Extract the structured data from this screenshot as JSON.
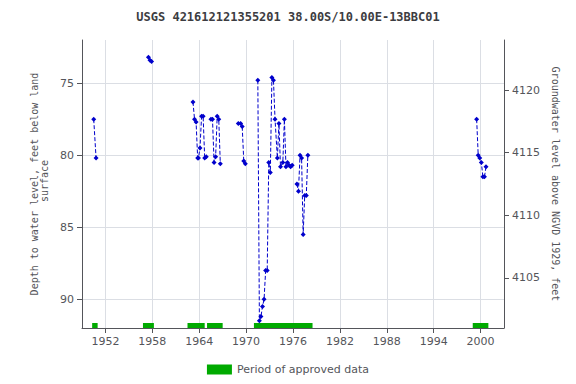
{
  "chart_data": {
    "type": "line",
    "title": "USGS 421612121355201 38.00S/10.00E-13BBC01",
    "ylabel": "Depth to water level, feet below land\n surface",
    "y2label": "Groundwater level above NGVD 1929, feet",
    "xlim": [
      1949,
      2003
    ],
    "xticks": [
      1952,
      1958,
      1964,
      1970,
      1976,
      1982,
      1988,
      1994,
      2000
    ],
    "ylim": [
      92,
      72
    ],
    "yticks": [
      75,
      80,
      85,
      90
    ],
    "y2lim": [
      4101,
      4124
    ],
    "y2ticks": [
      4105,
      4110,
      4115,
      4120
    ],
    "grid": true,
    "legend": "bottom",
    "series": [
      {
        "color": "#0000cc",
        "marker": "diamond",
        "line_style": "dashed",
        "x": [
          1950.5,
          1950.8
        ],
        "values": [
          77.5,
          80.2
        ]
      },
      {
        "color": "#0000cc",
        "marker": "diamond",
        "line_style": "dashed",
        "x": [
          1957.5,
          1957.7,
          1957.9
        ],
        "values": [
          73.2,
          73.4,
          73.5
        ]
      },
      {
        "color": "#0000cc",
        "marker": "diamond",
        "line_style": "dashed",
        "x": [
          1963.2,
          1963.4,
          1963.6,
          1963.8,
          1963.9,
          1964.1,
          1964.3,
          1964.5,
          1964.7,
          1964.9
        ],
        "values": [
          76.3,
          77.5,
          77.7,
          80.2,
          80.2,
          79.5,
          77.3,
          77.3,
          80.2,
          80.1
        ]
      },
      {
        "color": "#0000cc",
        "marker": "diamond",
        "line_style": "dashed",
        "x": [
          1965.5,
          1965.7,
          1965.9,
          1966.1,
          1966.3,
          1966.5,
          1966.7
        ],
        "values": [
          77.5,
          77.5,
          80.5,
          80.1,
          77.3,
          77.5,
          80.6
        ]
      },
      {
        "color": "#0000cc",
        "marker": "diamond",
        "line_style": "dashed",
        "x": [
          1969.0,
          1969.3,
          1969.5,
          1969.7,
          1969.9
        ],
        "values": [
          77.8,
          77.8,
          78.0,
          80.4,
          80.6
        ]
      },
      {
        "color": "#0000cc",
        "marker": "diamond",
        "line_style": "dashed",
        "x": [
          1971.5,
          1971.7,
          1971.9,
          1972.1,
          1972.3,
          1972.5,
          1972.7,
          1972.9,
          1973.1,
          1973.3,
          1973.5,
          1973.7,
          1974.0,
          1974.2,
          1974.4,
          1974.7,
          1974.9,
          1975.1,
          1975.3,
          1975.5,
          1975.7,
          1975.9
        ],
        "values": [
          74.8,
          91.5,
          91.2,
          90.5,
          90.0,
          88.0,
          88.0,
          80.5,
          81.2,
          74.6,
          74.8,
          77.5,
          80.2,
          77.8,
          80.8,
          80.5,
          77.5,
          80.8,
          80.5,
          80.7,
          80.8,
          80.7
        ]
      },
      {
        "color": "#0000cc",
        "marker": "diamond",
        "line_style": "dashed",
        "x": [
          1976.5,
          1976.7,
          1976.9,
          1977.1,
          1977.3,
          1977.5,
          1977.7,
          1977.9
        ],
        "values": [
          82.0,
          82.5,
          80.0,
          80.2,
          85.5,
          82.8,
          82.8,
          80.0
        ]
      },
      {
        "color": "#0000cc",
        "marker": "diamond",
        "line_style": "dashed",
        "x": [
          1999.5,
          1999.7,
          1999.9,
          2000.1,
          2000.3,
          2000.5,
          2000.7
        ],
        "values": [
          77.5,
          80.0,
          80.2,
          80.5,
          81.5,
          81.5,
          80.8
        ]
      },
      {
        "name": "Period of approved data",
        "type": "bar",
        "color": "#00aa00",
        "ranges": [
          [
            1950.3,
            1951.0
          ],
          [
            1956.8,
            1958.2
          ],
          [
            1962.5,
            1964.7
          ],
          [
            1965.0,
            1967.0
          ],
          [
            1971.0,
            1978.5
          ],
          [
            1999.0,
            2001.0
          ]
        ]
      }
    ]
  }
}
